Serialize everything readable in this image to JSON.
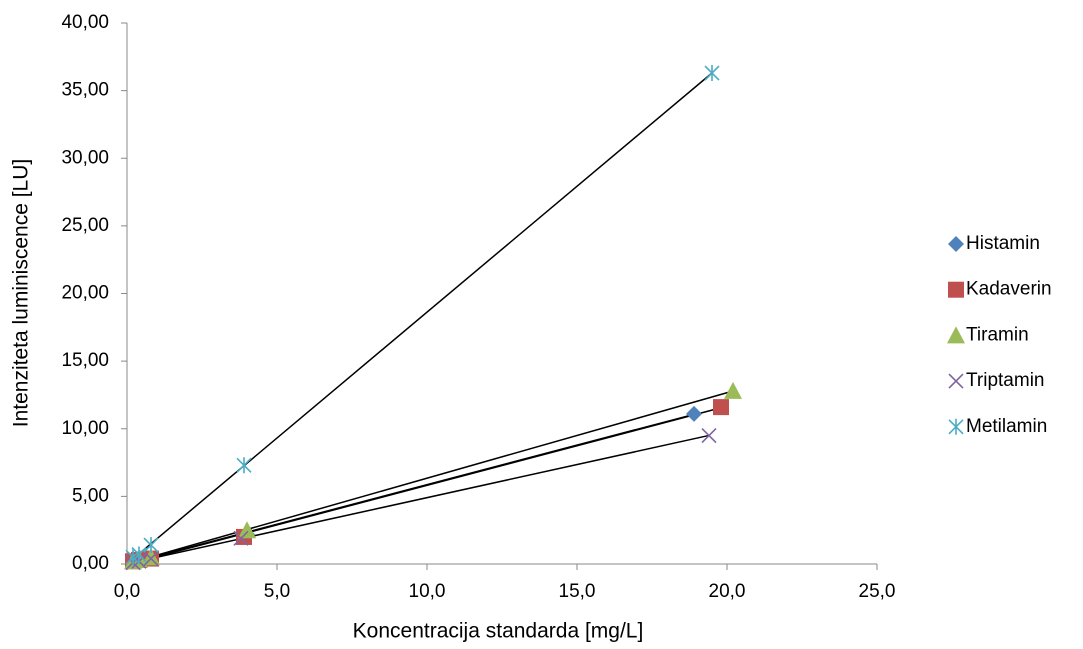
{
  "chart_data": {
    "type": "scatter",
    "x_label": "Koncentracija standarda [mg/L]",
    "y_label": "Intenziteta luminiscence [LU]",
    "xlim": [
      0,
      25
    ],
    "xticks": [
      {
        "value": 0,
        "label": "0,0"
      },
      {
        "value": 5,
        "label": "5,0"
      },
      {
        "value": 10,
        "label": "10,0"
      },
      {
        "value": 15,
        "label": "15,0"
      },
      {
        "value": 20,
        "label": "20,0"
      },
      {
        "value": 25,
        "label": "25,0"
      }
    ],
    "ylim": [
      0,
      40
    ],
    "yticks": [
      {
        "value": 0,
        "label": "0,00"
      },
      {
        "value": 5,
        "label": "5,00"
      },
      {
        "value": 10,
        "label": "10,00"
      },
      {
        "value": 15,
        "label": "15,00"
      },
      {
        "value": 20,
        "label": "20,00"
      },
      {
        "value": 25,
        "label": "25,00"
      },
      {
        "value": 30,
        "label": "30,00"
      },
      {
        "value": 35,
        "label": "35,00"
      },
      {
        "value": 40,
        "label": "40,00"
      }
    ],
    "trendline": true,
    "legend": "right",
    "series": [
      {
        "name": "Histamin",
        "color": "#4f81bd",
        "marker": "diamond",
        "x": [
          0.2,
          0.4,
          0.8,
          4.0,
          18.9
        ],
        "values": [
          0.2,
          0.3,
          0.5,
          2.2,
          11.1
        ]
      },
      {
        "name": "Kadaverin",
        "color": "#c0504d",
        "marker": "square",
        "x": [
          0.2,
          0.4,
          0.8,
          3.9,
          19.8
        ],
        "values": [
          0.2,
          0.3,
          0.4,
          2.0,
          11.6
        ]
      },
      {
        "name": "Tiramin",
        "color": "#9bbb59",
        "marker": "triangle",
        "x": [
          0.2,
          0.4,
          0.8,
          4.0,
          20.2
        ],
        "values": [
          0.2,
          0.3,
          0.5,
          2.5,
          12.8
        ]
      },
      {
        "name": "Triptamin",
        "color": "#8064a2",
        "marker": "x",
        "x": [
          0.2,
          0.4,
          0.8,
          3.8,
          19.4
        ],
        "values": [
          0.1,
          0.2,
          0.4,
          1.9,
          9.5
        ]
      },
      {
        "name": "Metilamin",
        "color": "#4bacc6",
        "marker": "star",
        "x": [
          0.2,
          0.4,
          0.8,
          3.9,
          19.5
        ],
        "values": [
          0.5,
          0.7,
          1.4,
          7.3,
          36.3
        ]
      }
    ]
  }
}
